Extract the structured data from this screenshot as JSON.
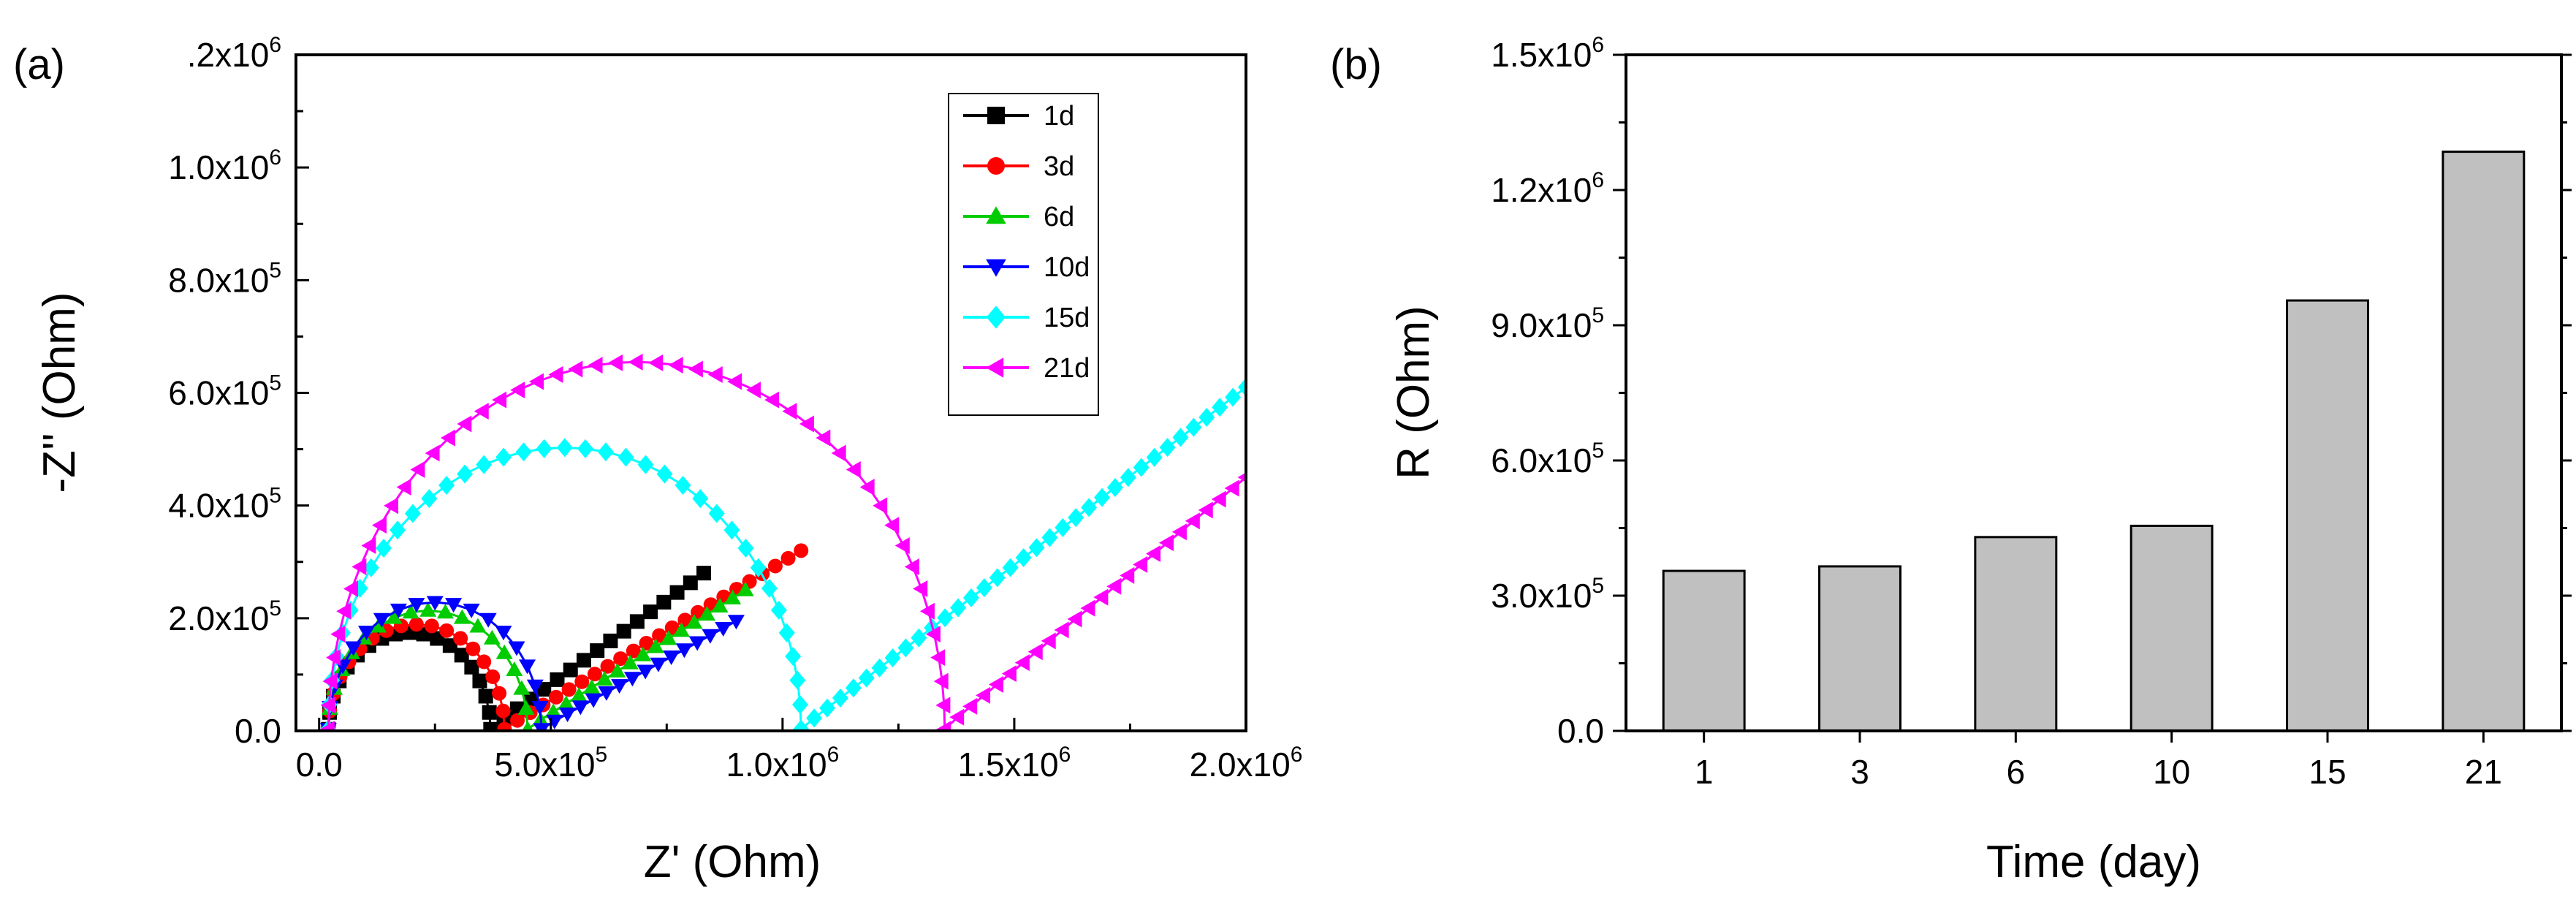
{
  "chart_data": [
    {
      "panel": "(a)",
      "type": "line",
      "xlabel": "Z' (Ohm)",
      "ylabel": "-Z'' (Ohm)",
      "xlim": [
        -50000,
        2000000
      ],
      "ylim": [
        0,
        1200000
      ],
      "x_ticks": [
        {
          "value": 0,
          "base": "0.0",
          "exp": ""
        },
        {
          "value": 500000,
          "base": "5.0x10",
          "exp": "5"
        },
        {
          "value": 1000000,
          "base": "1.0x10",
          "exp": "6"
        },
        {
          "value": 1500000,
          "base": "1.5x10",
          "exp": "6"
        },
        {
          "value": 2000000,
          "base": "2.0x10",
          "exp": "6"
        }
      ],
      "y_ticks": [
        {
          "value": 0,
          "base": "0.0",
          "exp": ""
        },
        {
          "value": 200000,
          "base": "2.0x10",
          "exp": "5"
        },
        {
          "value": 400000,
          "base": "4.0x10",
          "exp": "5"
        },
        {
          "value": 600000,
          "base": "6.0x10",
          "exp": "5"
        },
        {
          "value": 800000,
          "base": "8.0x10",
          "exp": "5"
        },
        {
          "value": 1000000,
          "base": "1.0x10",
          "exp": "6"
        },
        {
          "value": 1200000,
          "base": ".2x10",
          "exp": "6"
        }
      ],
      "legend_position": "top-right",
      "series": [
        {
          "name": "1d",
          "color": "#000000",
          "marker": "square",
          "start": 20000,
          "rct": 350000,
          "tail_end": [
            830000,
            280000
          ]
        },
        {
          "name": "3d",
          "color": "#ff0000",
          "marker": "circle",
          "start": 20000,
          "rct": 380000,
          "tail_end": [
            1040000,
            320000
          ]
        },
        {
          "name": "6d",
          "color": "#00cc00",
          "marker": "triangle-up",
          "start": 20000,
          "rct": 430000,
          "tail_end": [
            920000,
            250000
          ]
        },
        {
          "name": "10d",
          "color": "#0000ff",
          "marker": "triangle-down",
          "start": 20000,
          "rct": 460000,
          "tail_end": [
            900000,
            195000
          ]
        },
        {
          "name": "15d",
          "color": "#00ffff",
          "marker": "diamond",
          "start": 20000,
          "rct": 1020000,
          "tail_end": [
            2000000,
            610000
          ]
        },
        {
          "name": "21d",
          "color": "#ff00ff",
          "marker": "triangle-left",
          "start": 20000,
          "rct": 1330000,
          "tail_end": [
            2000000,
            450000
          ]
        }
      ]
    },
    {
      "panel": "(b)",
      "type": "bar",
      "xlabel": "Time (day)",
      "ylabel": "R (Ohm)",
      "categories": [
        "1",
        "3",
        "6",
        "10",
        "15",
        "21"
      ],
      "values": [
        355000,
        365000,
        430000,
        455000,
        955000,
        1285000
      ],
      "ylim": [
        0,
        1500000
      ],
      "bar_color": "#c0c0c0",
      "y_ticks": [
        {
          "value": 0,
          "base": "0.0",
          "exp": ""
        },
        {
          "value": 300000,
          "base": "3.0x10",
          "exp": "5"
        },
        {
          "value": 600000,
          "base": "6.0x10",
          "exp": "5"
        },
        {
          "value": 900000,
          "base": "9.0x10",
          "exp": "5"
        },
        {
          "value": 1200000,
          "base": "1.2x10",
          "exp": "6"
        },
        {
          "value": 1500000,
          "base": "1.5x10",
          "exp": "6"
        }
      ]
    }
  ]
}
